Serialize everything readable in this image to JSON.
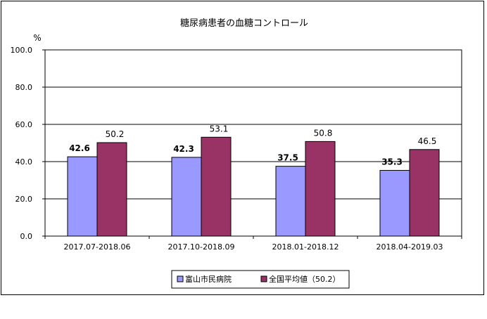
{
  "chart_data": {
    "type": "bar",
    "title": "糖尿病患者の血糖コントロール",
    "ylabel": "%",
    "xlabel": "",
    "ylim": [
      0,
      100
    ],
    "yticks": [
      "0.0",
      "20.0",
      "40.0",
      "60.0",
      "80.0",
      "100.0"
    ],
    "grid": true,
    "legend_position": "bottom",
    "categories": [
      "2017.07-2018.06",
      "2017.10-2018.09",
      "2018.01-2018.12",
      "2018.04-2019.03"
    ],
    "series": [
      {
        "name": "富山市民病院",
        "values": [
          42.6,
          42.3,
          37.5,
          35.3
        ],
        "labels": [
          "42.6",
          "42.3",
          "37.5",
          "35.3"
        ],
        "color": "#9999ff"
      },
      {
        "name": "全国平均値（50.2）",
        "values": [
          50.2,
          53.1,
          50.8,
          46.5
        ],
        "labels": [
          "50.2",
          "53.1",
          "50.8",
          "46.5"
        ],
        "color": "#993366"
      }
    ]
  }
}
